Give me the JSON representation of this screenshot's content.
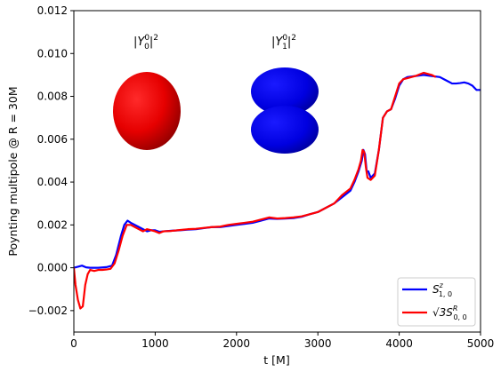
{
  "chart_data": {
    "type": "line",
    "xlabel": "t [M]",
    "ylabel": "Poynting multipole @ R = 30M",
    "xlim": [
      0,
      5000
    ],
    "ylim": [
      -0.003,
      0.012
    ],
    "x_ticks": [
      0,
      1000,
      2000,
      3000,
      4000,
      5000
    ],
    "x_tick_labels": [
      "0",
      "1000",
      "2000",
      "3000",
      "4000",
      "5000"
    ],
    "y_ticks": [
      -0.002,
      0.0,
      0.002,
      0.004,
      0.006,
      0.008,
      0.01,
      0.012
    ],
    "y_tick_labels": [
      "−0.002",
      "0.000",
      "0.002",
      "0.004",
      "0.006",
      "0.008",
      "0.010",
      "0.012"
    ],
    "grid": false,
    "legend_position": "lower-right",
    "series": [
      {
        "name": "S^z_{1,0}",
        "name_main": "S",
        "name_sup": "z",
        "name_sub": "1, 0",
        "color": "#0000ff",
        "points": [
          [
            0,
            0.0
          ],
          [
            50,
            5e-05
          ],
          [
            100,
            0.0001
          ],
          [
            150,
            2e-05
          ],
          [
            200,
            0.0
          ],
          [
            300,
            0.0
          ],
          [
            400,
            3e-05
          ],
          [
            470,
            0.0001
          ],
          [
            520,
            0.0006
          ],
          [
            580,
            0.0015
          ],
          [
            620,
            0.002
          ],
          [
            660,
            0.0022
          ],
          [
            700,
            0.0021
          ],
          [
            750,
            0.002
          ],
          [
            800,
            0.0019
          ],
          [
            850,
            0.0018
          ],
          [
            900,
            0.0017
          ],
          [
            950,
            0.00175
          ],
          [
            1000,
            0.00175
          ],
          [
            1050,
            0.00168
          ],
          [
            1100,
            0.0017
          ],
          [
            1200,
            0.00173
          ],
          [
            1300,
            0.00175
          ],
          [
            1400,
            0.00178
          ],
          [
            1500,
            0.0018
          ],
          [
            1600,
            0.00185
          ],
          [
            1700,
            0.0019
          ],
          [
            1800,
            0.0019
          ],
          [
            1900,
            0.00195
          ],
          [
            2000,
            0.002
          ],
          [
            2100,
            0.00205
          ],
          [
            2200,
            0.0021
          ],
          [
            2300,
            0.0022
          ],
          [
            2400,
            0.0023
          ],
          [
            2500,
            0.00228
          ],
          [
            2600,
            0.0023
          ],
          [
            2700,
            0.00232
          ],
          [
            2800,
            0.00238
          ],
          [
            2900,
            0.0025
          ],
          [
            3000,
            0.0026
          ],
          [
            3100,
            0.0028
          ],
          [
            3200,
            0.003
          ],
          [
            3300,
            0.0033
          ],
          [
            3400,
            0.0036
          ],
          [
            3450,
            0.004
          ],
          [
            3500,
            0.0045
          ],
          [
            3540,
            0.005
          ],
          [
            3560,
            0.0055
          ],
          [
            3580,
            0.0053
          ],
          [
            3600,
            0.0045
          ],
          [
            3620,
            0.0045
          ],
          [
            3650,
            0.0042
          ],
          [
            3700,
            0.0044
          ],
          [
            3750,
            0.0055
          ],
          [
            3800,
            0.007
          ],
          [
            3850,
            0.0073
          ],
          [
            3900,
            0.0074
          ],
          [
            3950,
            0.0079
          ],
          [
            4000,
            0.0085
          ],
          [
            4050,
            0.0088
          ],
          [
            4100,
            0.0089
          ],
          [
            4200,
            0.00895
          ],
          [
            4300,
            0.009
          ],
          [
            4400,
            0.00895
          ],
          [
            4500,
            0.0089
          ],
          [
            4550,
            0.0088
          ],
          [
            4600,
            0.0087
          ],
          [
            4650,
            0.0086
          ],
          [
            4700,
            0.0086
          ],
          [
            4750,
            0.00862
          ],
          [
            4800,
            0.00865
          ],
          [
            4850,
            0.0086
          ],
          [
            4900,
            0.0085
          ],
          [
            4950,
            0.0083
          ],
          [
            5000,
            0.0083
          ]
        ]
      },
      {
        "name": "√3 S^R_{0,0}",
        "name_main": "√3S",
        "name_sup": "R",
        "name_sub": "0, 0",
        "color": "#ff0000",
        "points": [
          [
            0,
            0.0
          ],
          [
            20,
            -0.0008
          ],
          [
            50,
            -0.0015
          ],
          [
            80,
            -0.0019
          ],
          [
            110,
            -0.0018
          ],
          [
            140,
            -0.0008
          ],
          [
            170,
            -0.0003
          ],
          [
            200,
            -0.0001
          ],
          [
            250,
            -0.00015
          ],
          [
            300,
            -0.0001
          ],
          [
            350,
            -0.0001
          ],
          [
            400,
            -8e-05
          ],
          [
            450,
            -5e-05
          ],
          [
            500,
            0.0002
          ],
          [
            550,
            0.0008
          ],
          [
            600,
            0.0015
          ],
          [
            650,
            0.002
          ],
          [
            700,
            0.002
          ],
          [
            750,
            0.0019
          ],
          [
            800,
            0.0018
          ],
          [
            850,
            0.0017
          ],
          [
            900,
            0.0018
          ],
          [
            950,
            0.00175
          ],
          [
            1000,
            0.0017
          ],
          [
            1050,
            0.00162
          ],
          [
            1100,
            0.0017
          ],
          [
            1200,
            0.00172
          ],
          [
            1300,
            0.00176
          ],
          [
            1400,
            0.0018
          ],
          [
            1500,
            0.00182
          ],
          [
            1600,
            0.00186
          ],
          [
            1700,
            0.0019
          ],
          [
            1800,
            0.00192
          ],
          [
            1900,
            0.002
          ],
          [
            2000,
            0.00205
          ],
          [
            2100,
            0.0021
          ],
          [
            2200,
            0.00215
          ],
          [
            2300,
            0.00225
          ],
          [
            2400,
            0.00235
          ],
          [
            2500,
            0.0023
          ],
          [
            2600,
            0.00232
          ],
          [
            2700,
            0.00235
          ],
          [
            2800,
            0.0024
          ],
          [
            2900,
            0.0025
          ],
          [
            3000,
            0.0026
          ],
          [
            3100,
            0.0028
          ],
          [
            3200,
            0.003
          ],
          [
            3300,
            0.0034
          ],
          [
            3400,
            0.0037
          ],
          [
            3450,
            0.0041
          ],
          [
            3500,
            0.0046
          ],
          [
            3530,
            0.005
          ],
          [
            3550,
            0.0055
          ],
          [
            3570,
            0.0054
          ],
          [
            3590,
            0.0047
          ],
          [
            3610,
            0.0042
          ],
          [
            3650,
            0.0041
          ],
          [
            3700,
            0.0043
          ],
          [
            3750,
            0.0055
          ],
          [
            3800,
            0.007
          ],
          [
            3850,
            0.0073
          ],
          [
            3900,
            0.0074
          ],
          [
            3950,
            0.008
          ],
          [
            4000,
            0.0086
          ],
          [
            4050,
            0.0088
          ],
          [
            4100,
            0.00885
          ],
          [
            4200,
            0.00895
          ],
          [
            4300,
            0.0091
          ],
          [
            4400,
            0.009
          ],
          [
            4450,
            0.0089
          ]
        ]
      }
    ],
    "annotations": [
      {
        "label": "|Y_0^0|^2",
        "text_bar": "|",
        "text_y": "Y",
        "text_sup": "0",
        "text_sub": "0",
        "text_tail": "|",
        "text_pow": "2"
      },
      {
        "label": "|Y_1^0|^2",
        "text_bar": "|",
        "text_y": "Y",
        "text_sup": "0",
        "text_sub": "1",
        "text_tail": "|",
        "text_pow": "2"
      }
    ]
  }
}
